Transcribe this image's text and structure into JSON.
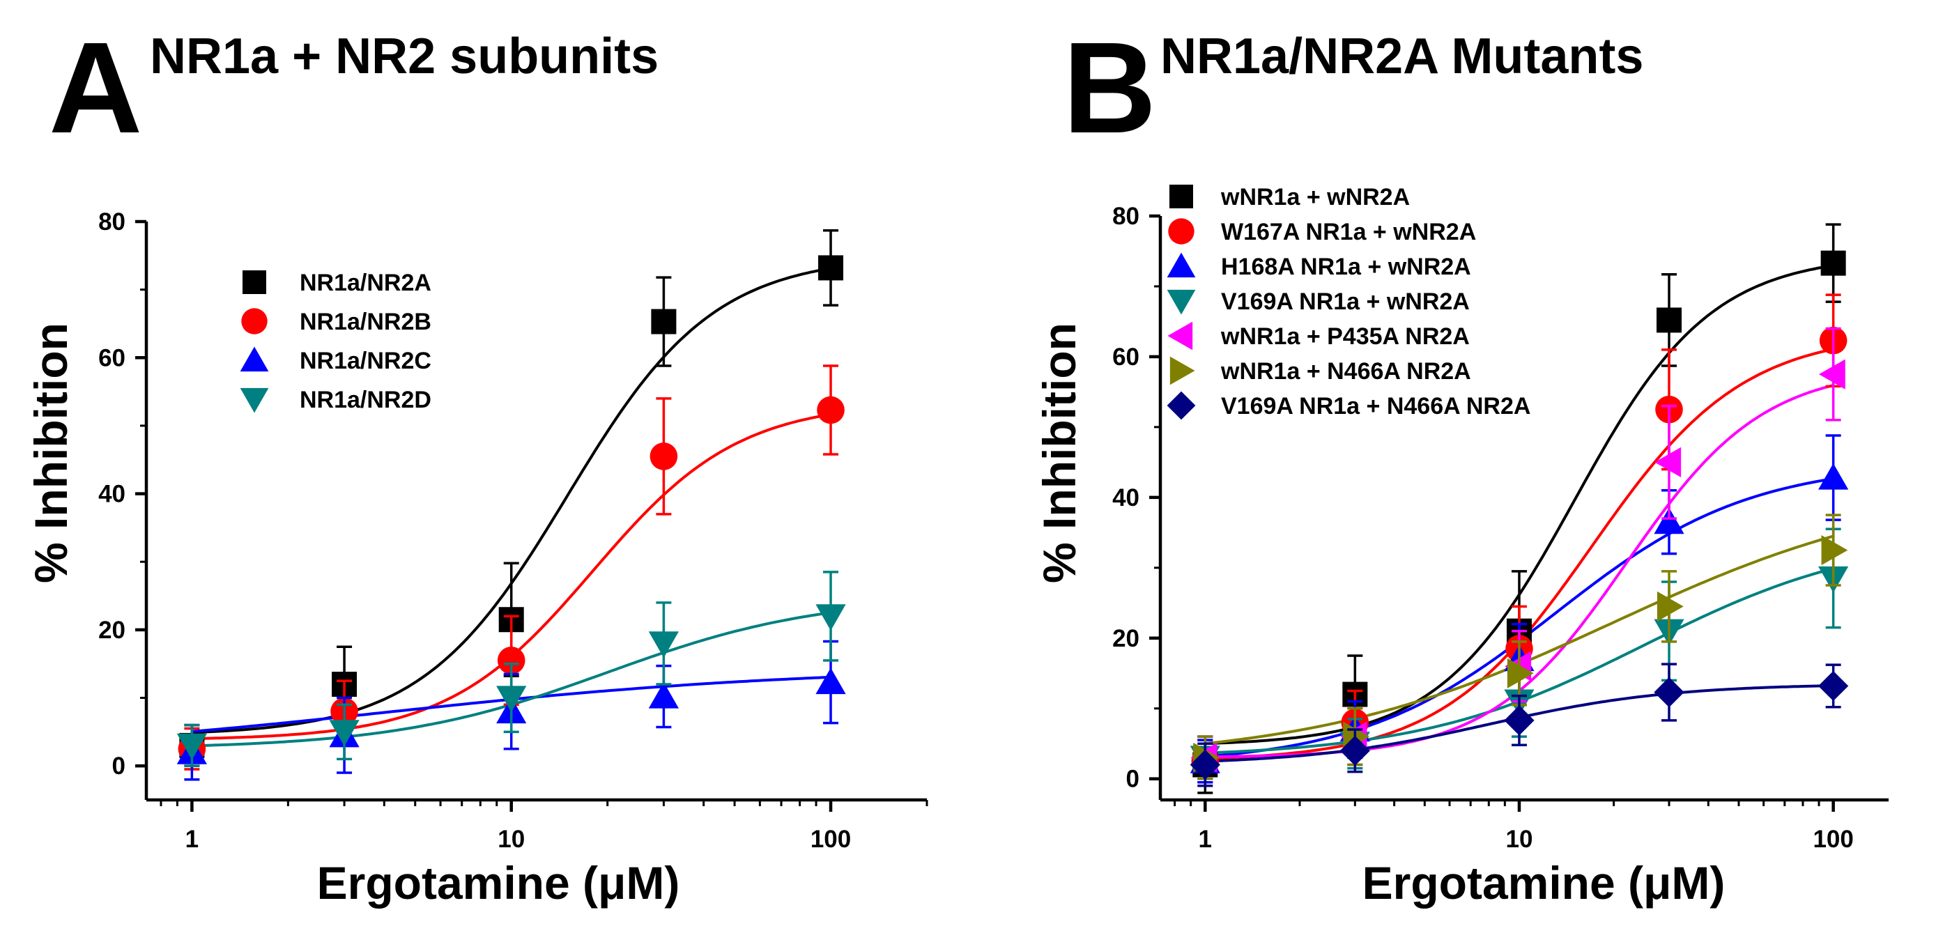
{
  "chart_data": [
    {
      "type": "line",
      "panel_letter": "A",
      "title": "NR1a + NR2 subunits",
      "xlabel": "Ergotamine (μM)",
      "ylabel": "% Inhibition",
      "xscale": "log",
      "xlim": [
        0.72,
        200
      ],
      "ylim": [
        -5,
        80
      ],
      "xticks": [
        1,
        10,
        100
      ],
      "xtick_labels": [
        "1",
        "10",
        "100"
      ],
      "yticks": [
        0,
        20,
        40,
        60,
        80
      ],
      "ytick_labels": [
        "0",
        "20",
        "40",
        "60",
        "80"
      ],
      "legend_position": "top-left",
      "x": [
        1,
        3,
        10,
        30,
        100
      ],
      "series": [
        {
          "name": "NR1a/NR2A",
          "color": "#000000",
          "marker": "square",
          "values": [
            3,
            12,
            21.5,
            65.3,
            73.2
          ],
          "errors": [
            3,
            5.5,
            8.3,
            6.5,
            5.5
          ],
          "fit": {
            "bottom": 4.5,
            "top": 75,
            "ec50": 15,
            "hill": 1.9
          }
        },
        {
          "name": "NR1a/NR2B",
          "color": "#ff0000",
          "marker": "circle",
          "values": [
            2.5,
            8,
            15.5,
            45.5,
            52.3
          ],
          "errors": [
            3,
            4.5,
            6.5,
            8.5,
            6.5
          ],
          "fit": {
            "bottom": 3.8,
            "top": 53.5,
            "ec50": 18,
            "hill": 1.9
          }
        },
        {
          "name": "NR1a/NR2C",
          "color": "#0000ff",
          "marker": "triangle-up",
          "values": [
            2,
            4.5,
            8,
            10.2,
            12.3
          ],
          "errors": [
            4,
            5.5,
            5.5,
            4.5,
            6
          ],
          "fit": {
            "bottom": 1.2,
            "top": 14.5,
            "ec50": 4,
            "hill": 0.65
          }
        },
        {
          "name": "NR1a/NR2D",
          "color": "#008080",
          "marker": "triangle-down",
          "values": [
            3,
            5,
            10,
            18,
            22
          ],
          "errors": [
            3,
            4,
            5,
            6,
            6.5
          ],
          "fit": {
            "bottom": 2.5,
            "top": 25,
            "ec50": 20,
            "hill": 1.3
          }
        }
      ]
    },
    {
      "type": "line",
      "panel_letter": "B",
      "title": "NR1a/NR2A Mutants",
      "xlabel": "Ergotamine (μM)",
      "ylabel": "% Inhibition",
      "xscale": "log",
      "xlim": [
        0.72,
        150
      ],
      "ylim": [
        -3,
        80
      ],
      "xticks": [
        1,
        10,
        100
      ],
      "xtick_labels": [
        "1",
        "10",
        "100"
      ],
      "yticks": [
        0,
        20,
        40,
        60,
        80
      ],
      "ytick_labels": [
        "0",
        "20",
        "40",
        "60",
        "80"
      ],
      "legend_position": "top-left",
      "x": [
        1,
        3,
        10,
        30,
        100
      ],
      "series": [
        {
          "name": "wNR1a + wNR2A",
          "color": "#000000",
          "marker": "square",
          "values": [
            2,
            12,
            21,
            65.2,
            73.3
          ],
          "errors": [
            4,
            5.5,
            8.5,
            6.5,
            5.5
          ],
          "fit": {
            "bottom": 4.7,
            "top": 74.5,
            "ec50": 15,
            "hill": 2
          }
        },
        {
          "name": "W167A NR1a + wNR2A",
          "color": "#ff0000",
          "marker": "circle",
          "values": [
            2.5,
            8,
            18.5,
            52.5,
            62.3
          ],
          "errors": [
            3,
            4.5,
            6,
            8.5,
            6.5
          ],
          "fit": {
            "bottom": 2.5,
            "top": 63.5,
            "ec50": 17,
            "hill": 1.8
          }
        },
        {
          "name": "H168A NR1a + wNR2A",
          "color": "#0000ff",
          "marker": "triangle-up",
          "values": [
            2.5,
            7,
            17,
            36.5,
            42.8
          ],
          "errors": [
            3,
            4,
            5,
            4.5,
            6
          ],
          "fit": {
            "bottom": 2,
            "top": 45,
            "ec50": 13,
            "hill": 1.4
          }
        },
        {
          "name": "V169A NR1a + wNR2A",
          "color": "#008080",
          "marker": "triangle-down",
          "values": [
            3,
            5,
            11,
            21,
            28.5
          ],
          "errors": [
            3,
            3.5,
            5,
            7,
            7
          ],
          "fit": {
            "bottom": 3,
            "top": 35,
            "ec50": 25,
            "hill": 1.2
          }
        },
        {
          "name": "wNR1a + P435A NR2A",
          "color": "#ff00ff",
          "marker": "triangle-left",
          "values": [
            3,
            6,
            16,
            45,
            57.5
          ],
          "errors": [
            3,
            4,
            5,
            8,
            6.5
          ],
          "fit": {
            "bottom": 3,
            "top": 58.5,
            "ec50": 22,
            "hill": 2
          }
        },
        {
          "name": "wNR1a + N466A NR2A",
          "color": "#808000",
          "marker": "triangle-right",
          "values": [
            3,
            6,
            15,
            24.5,
            32.5
          ],
          "errors": [
            3,
            4,
            4.5,
            5,
            5
          ],
          "fit": {
            "bottom": 2.5,
            "top": 42,
            "ec50": 20,
            "hill": 0.9
          }
        },
        {
          "name": "V169A NR1a + N466A NR2A",
          "color": "#000080",
          "marker": "diamond",
          "values": [
            2,
            4,
            8.3,
            12.3,
            13.2
          ],
          "errors": [
            3,
            3,
            3.5,
            4,
            3
          ],
          "fit": {
            "bottom": 2,
            "top": 13.5,
            "ec50": 8,
            "hill": 1.5
          }
        }
      ]
    }
  ]
}
